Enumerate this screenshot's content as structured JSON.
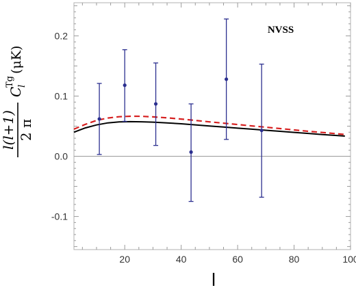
{
  "chart_data": {
    "type": "line",
    "xlabel": "l",
    "ylabel_parts": {
      "num": "l(l+1)",
      "den": "2 π",
      "c": "C",
      "sub": "l",
      "sup": "Tg",
      "unit": "(μK)"
    },
    "annotation": "NVSS",
    "xlim": [
      2,
      100
    ],
    "ylim": [
      -0.155,
      0.255
    ],
    "x_ticks": [
      20,
      40,
      60,
      80,
      100
    ],
    "x_tick_labels": [
      "20",
      "40",
      "60",
      "80",
      "100"
    ],
    "y_ticks": [
      -0.1,
      0.0,
      0.1,
      0.2
    ],
    "y_tick_labels": [
      "-0.1",
      "0.0",
      "0.1",
      "0.2"
    ],
    "grid": false,
    "series": [
      {
        "style": "solid",
        "color": "#000000",
        "x": [
          2,
          6,
          10,
          14,
          18,
          22,
          26,
          30,
          35,
          40,
          45,
          50,
          55,
          60,
          65,
          70,
          75,
          80,
          85,
          90,
          95,
          98
        ],
        "y": [
          0.04,
          0.047,
          0.052,
          0.0555,
          0.057,
          0.0575,
          0.0573,
          0.0567,
          0.0555,
          0.054,
          0.0522,
          0.0503,
          0.0485,
          0.0467,
          0.045,
          0.0432,
          0.0415,
          0.0397,
          0.038,
          0.0362,
          0.0345,
          0.0335
        ]
      },
      {
        "style": "dashed",
        "color": "#d62020",
        "x": [
          2,
          6,
          10,
          14,
          18,
          22,
          26,
          30,
          35,
          40,
          45,
          50,
          55,
          60,
          65,
          70,
          75,
          80,
          85,
          90,
          95,
          98
        ],
        "y": [
          0.045,
          0.053,
          0.0595,
          0.0635,
          0.0657,
          0.0665,
          0.0663,
          0.0655,
          0.0638,
          0.0618,
          0.0595,
          0.0572,
          0.055,
          0.0527,
          0.0505,
          0.0483,
          0.046,
          0.0437,
          0.0415,
          0.0395,
          0.0375,
          0.0362
        ]
      },
      {
        "style": "errorbar",
        "color": "#2b2f8f",
        "x": [
          11,
          20,
          31,
          43.5,
          56,
          68.5
        ],
        "y": [
          0.062,
          0.118,
          0.087,
          0.007,
          0.128,
          0.043
        ],
        "lower": [
          0.003,
          0.058,
          0.018,
          -0.075,
          0.028,
          -0.068
        ],
        "upper": [
          0.121,
          0.177,
          0.155,
          0.087,
          0.228,
          0.153
        ]
      }
    ]
  }
}
